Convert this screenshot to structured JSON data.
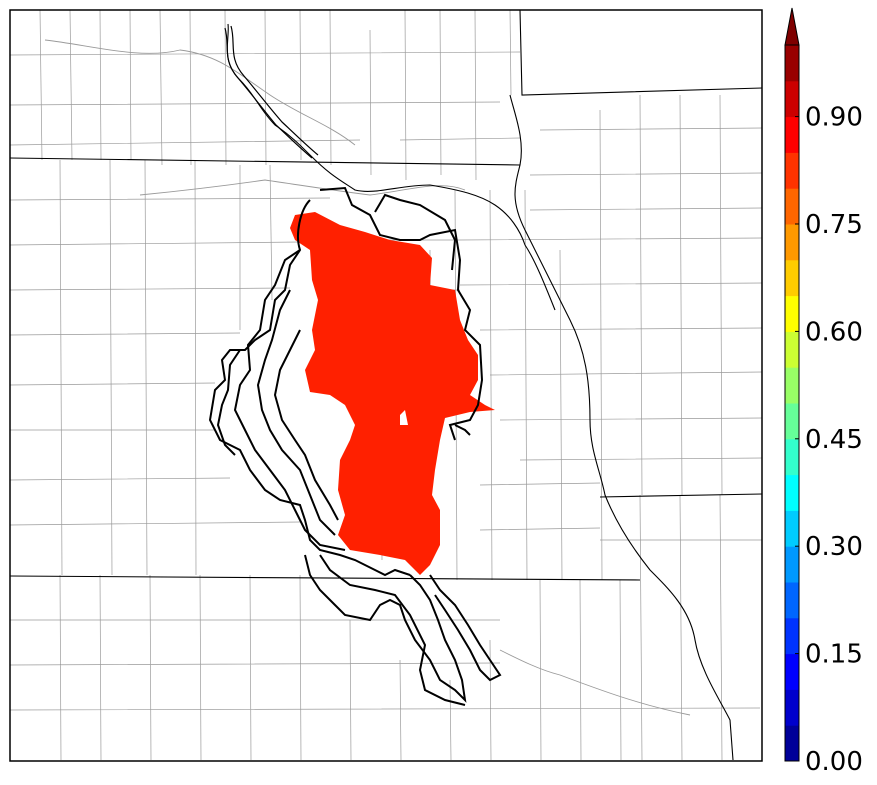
{
  "map": {
    "colorbar": {
      "min": 0.0,
      "max": 1.0,
      "step": 0.05,
      "extend": "max",
      "cmap": "jet",
      "ticks": [
        {
          "value": 0.0,
          "label": "0.00"
        },
        {
          "value": 0.15,
          "label": "0.15"
        },
        {
          "value": 0.3,
          "label": "0.30"
        },
        {
          "value": 0.45,
          "label": "0.45"
        },
        {
          "value": 0.6,
          "label": "0.60"
        },
        {
          "value": 0.75,
          "label": "0.75"
        },
        {
          "value": 0.9,
          "label": "0.90"
        }
      ]
    },
    "colors": {
      "filled_region": "#ff2000",
      "contour_lines": "#000000",
      "state_borders": "#000000",
      "county_lines": "#9a9a9a",
      "background": "#ffffff"
    },
    "filled_region_value": 0.9
  }
}
